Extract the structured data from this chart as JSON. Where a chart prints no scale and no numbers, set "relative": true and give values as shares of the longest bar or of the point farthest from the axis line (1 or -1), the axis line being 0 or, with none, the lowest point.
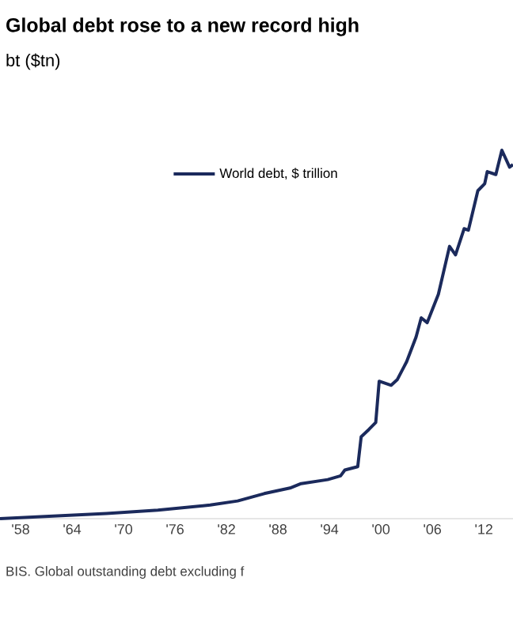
{
  "chart_data": {
    "type": "line",
    "title": "Global debt rose to a new record high",
    "subtitle": "bt ($tn)",
    "relative": true,
    "x": [
      1955.6,
      1968,
      1974,
      1980.1,
      1983.3,
      1986.4,
      1989.4,
      1990.7,
      1993.8,
      1995.3,
      1995.8,
      1997.3,
      1997.7,
      1998.6,
      1999.4,
      1999.8,
      2001.2,
      2001.9,
      2003,
      2004.1,
      2004.7,
      2005.4,
      2006.7,
      2008,
      2008.7,
      2009.7,
      2010.2,
      2011.3,
      2012.1,
      2012.4,
      2013.4,
      2014.1,
      2015,
      2015.4
    ],
    "series": [
      {
        "name": "World debt, $ trillion",
        "color": "#1b2a5c",
        "values": [
          0,
          0.014,
          0.023,
          0.037,
          0.048,
          0.068,
          0.083,
          0.095,
          0.106,
          0.116,
          0.132,
          0.141,
          0.222,
          0.242,
          0.261,
          0.373,
          0.362,
          0.377,
          0.426,
          0.493,
          0.545,
          0.532,
          0.609,
          0.739,
          0.716,
          0.787,
          0.783,
          0.89,
          0.909,
          0.942,
          0.934,
          1,
          0.954,
          0.961
        ]
      }
    ],
    "xticks": [
      {
        "value": 1958,
        "label": "'58"
      },
      {
        "value": 1964,
        "label": "'64"
      },
      {
        "value": 1970,
        "label": "'70"
      },
      {
        "value": 1976,
        "label": "'76"
      },
      {
        "value": 1982,
        "label": "'82"
      },
      {
        "value": 1988,
        "label": "'88"
      },
      {
        "value": 1994,
        "label": "'94"
      },
      {
        "value": 2000,
        "label": "'00"
      },
      {
        "value": 2006,
        "label": "'06"
      },
      {
        "value": 2012,
        "label": "'12"
      }
    ],
    "xlim": [
      1955.6,
      2015.4
    ],
    "legend": "top",
    "grid": false,
    "annotations": [
      "BIS. Global outstanding debt excluding f"
    ]
  }
}
